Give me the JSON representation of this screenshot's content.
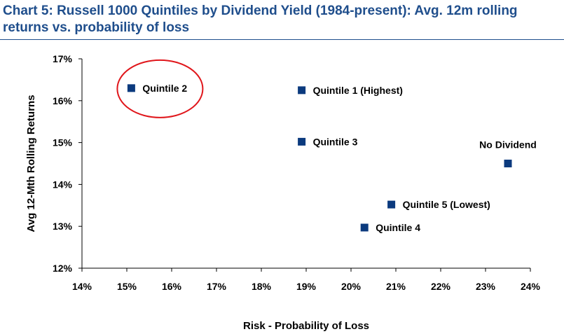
{
  "title": "Chart 5: Russell 1000 Quintiles by Dividend Yield (1984-present): Avg. 12m rolling returns vs. probability of loss",
  "chart_data": {
    "type": "scatter",
    "title": "Chart 5: Russell 1000 Quintiles by Dividend Yield (1984-present): Avg. 12m rolling returns vs. probability of loss",
    "xlabel": "Risk - Probability of Loss",
    "ylabel": "Avg 12-Mth Rolling Returns",
    "xlim": [
      14,
      24
    ],
    "ylim": [
      12,
      17
    ],
    "x_ticks": [
      "14%",
      "15%",
      "16%",
      "17%",
      "18%",
      "19%",
      "20%",
      "21%",
      "22%",
      "23%",
      "24%"
    ],
    "y_ticks": [
      "12%",
      "13%",
      "14%",
      "15%",
      "16%",
      "17%"
    ],
    "grid": false,
    "marker_color": "#0b3a7e",
    "highlight_color": "#e0161b",
    "points": [
      {
        "label": "Quintile 2",
        "x": 15.1,
        "y": 16.3,
        "highlighted": true
      },
      {
        "label": "Quintile 1 (Highest)",
        "x": 18.9,
        "y": 16.25
      },
      {
        "label": "Quintile 3",
        "x": 18.9,
        "y": 15.02
      },
      {
        "label": "No Dividend",
        "x": 23.5,
        "y": 14.5
      },
      {
        "label": "Quintile 5 (Lowest)",
        "x": 20.9,
        "y": 13.52
      },
      {
        "label": "Quintile 4",
        "x": 20.3,
        "y": 12.97
      }
    ]
  }
}
